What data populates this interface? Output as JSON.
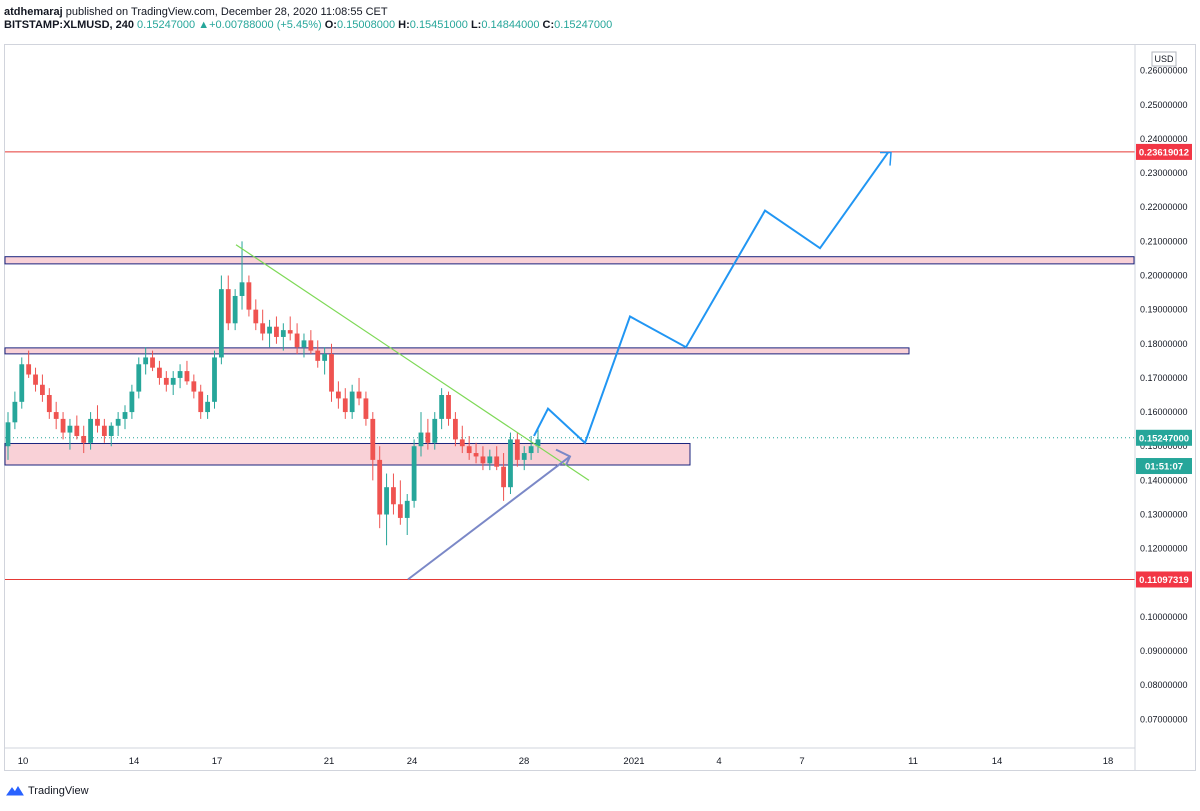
{
  "header": {
    "author": "atdhemaraj",
    "published_text": "published on TradingView.com, December 28, 2020 11:08:55 CET",
    "symbol": "BITSTAMP:XLMUSD, 240",
    "last": "0.15247000",
    "change": "+0.00788000 (+5.45%)",
    "o_label": "O:",
    "o_val": "0.15008000",
    "h_label": "H:",
    "h_val": "0.15451000",
    "l_label": "L:",
    "l_val": "0.14844000",
    "c_label": "C:",
    "c_val": "0.15247000"
  },
  "footer": {
    "brand": "TradingView"
  },
  "chart_data": {
    "type": "candlestick",
    "currency": "USD",
    "y_range": [
      0.0625,
      0.2675
    ],
    "y_ticks": [
      "0.26000000",
      "0.25000000",
      "0.24000000",
      "0.23000000",
      "0.22000000",
      "0.21000000",
      "0.20000000",
      "0.19000000",
      "0.18000000",
      "0.17000000",
      "0.16000000",
      "0.15000000",
      "0.14000000",
      "0.13000000",
      "0.12000000",
      "0.11000000",
      "0.10000000",
      "0.09000000",
      "0.08000000",
      "0.07000000"
    ],
    "x_ticks": [
      "10",
      "14",
      "17",
      "21",
      "24",
      "28",
      "2021",
      "4",
      "7",
      "11",
      "14",
      "18"
    ],
    "price_labels": [
      {
        "text": "0.23619012",
        "value": 0.23619012,
        "color": "#f23645"
      },
      {
        "text": "0.15247000",
        "value": 0.15247,
        "color": "#26a69a"
      },
      {
        "text": "01:51:07",
        "value": 0.1442,
        "color": "#26a69a"
      },
      {
        "text": "0.11097319",
        "value": 0.11097319,
        "color": "#f23645"
      }
    ],
    "horizontal_lines": [
      {
        "value": 0.23619012,
        "color": "#e53935"
      },
      {
        "value": 0.11097319,
        "color": "#e53935"
      }
    ],
    "zones": [
      {
        "from": 0.2034,
        "to": 0.2055,
        "start": "Dec 10",
        "end": "right edge"
      },
      {
        "from": 0.1775,
        "to": 0.1788,
        "start": "Dec 10",
        "end": "Jan 3"
      },
      {
        "from": 0.1445,
        "to": 0.1508,
        "start": "Dec 10",
        "end": "Dec 30"
      }
    ],
    "candles": [
      [
        0.15,
        0.16,
        0.146,
        0.157
      ],
      [
        0.157,
        0.166,
        0.155,
        0.163
      ],
      [
        0.163,
        0.176,
        0.161,
        0.174
      ],
      [
        0.174,
        0.178,
        0.17,
        0.171
      ],
      [
        0.171,
        0.173,
        0.166,
        0.168
      ],
      [
        0.168,
        0.171,
        0.163,
        0.165
      ],
      [
        0.165,
        0.167,
        0.158,
        0.16
      ],
      [
        0.16,
        0.163,
        0.155,
        0.158
      ],
      [
        0.158,
        0.16,
        0.152,
        0.154
      ],
      [
        0.154,
        0.158,
        0.149,
        0.156
      ],
      [
        0.156,
        0.159,
        0.152,
        0.153
      ],
      [
        0.153,
        0.156,
        0.148,
        0.151
      ],
      [
        0.151,
        0.16,
        0.149,
        0.158
      ],
      [
        0.158,
        0.162,
        0.154,
        0.156
      ],
      [
        0.156,
        0.158,
        0.151,
        0.153
      ],
      [
        0.153,
        0.157,
        0.15,
        0.156
      ],
      [
        0.156,
        0.16,
        0.153,
        0.158
      ],
      [
        0.158,
        0.162,
        0.155,
        0.16
      ],
      [
        0.16,
        0.168,
        0.158,
        0.166
      ],
      [
        0.166,
        0.176,
        0.164,
        0.174
      ],
      [
        0.174,
        0.179,
        0.171,
        0.176
      ],
      [
        0.176,
        0.178,
        0.172,
        0.173
      ],
      [
        0.173,
        0.175,
        0.168,
        0.17
      ],
      [
        0.17,
        0.172,
        0.166,
        0.168
      ],
      [
        0.168,
        0.172,
        0.165,
        0.17
      ],
      [
        0.17,
        0.174,
        0.167,
        0.172
      ],
      [
        0.172,
        0.175,
        0.168,
        0.169
      ],
      [
        0.169,
        0.171,
        0.164,
        0.166
      ],
      [
        0.166,
        0.168,
        0.158,
        0.16
      ],
      [
        0.16,
        0.165,
        0.158,
        0.163
      ],
      [
        0.163,
        0.178,
        0.161,
        0.176
      ],
      [
        0.176,
        0.2,
        0.174,
        0.196
      ],
      [
        0.196,
        0.2,
        0.184,
        0.186
      ],
      [
        0.186,
        0.196,
        0.184,
        0.194
      ],
      [
        0.194,
        0.21,
        0.19,
        0.198
      ],
      [
        0.198,
        0.2,
        0.188,
        0.19
      ],
      [
        0.19,
        0.193,
        0.184,
        0.186
      ],
      [
        0.186,
        0.19,
        0.181,
        0.183
      ],
      [
        0.183,
        0.187,
        0.179,
        0.185
      ],
      [
        0.185,
        0.188,
        0.18,
        0.182
      ],
      [
        0.182,
        0.186,
        0.178,
        0.184
      ],
      [
        0.184,
        0.188,
        0.181,
        0.183
      ],
      [
        0.183,
        0.186,
        0.177,
        0.179
      ],
      [
        0.179,
        0.183,
        0.176,
        0.181
      ],
      [
        0.181,
        0.184,
        0.177,
        0.178
      ],
      [
        0.178,
        0.181,
        0.173,
        0.175
      ],
      [
        0.175,
        0.179,
        0.171,
        0.177
      ],
      [
        0.177,
        0.18,
        0.163,
        0.166
      ],
      [
        0.166,
        0.169,
        0.161,
        0.164
      ],
      [
        0.164,
        0.167,
        0.158,
        0.16
      ],
      [
        0.16,
        0.168,
        0.158,
        0.166
      ],
      [
        0.166,
        0.17,
        0.162,
        0.164
      ],
      [
        0.164,
        0.166,
        0.156,
        0.158
      ],
      [
        0.158,
        0.16,
        0.14,
        0.146
      ],
      [
        0.146,
        0.15,
        0.126,
        0.13
      ],
      [
        0.13,
        0.142,
        0.121,
        0.138
      ],
      [
        0.138,
        0.142,
        0.13,
        0.133
      ],
      [
        0.133,
        0.14,
        0.127,
        0.129
      ],
      [
        0.129,
        0.136,
        0.124,
        0.134
      ],
      [
        0.134,
        0.152,
        0.132,
        0.15
      ],
      [
        0.15,
        0.16,
        0.147,
        0.154
      ],
      [
        0.154,
        0.158,
        0.149,
        0.151
      ],
      [
        0.151,
        0.16,
        0.149,
        0.158
      ],
      [
        0.158,
        0.167,
        0.155,
        0.165
      ],
      [
        0.165,
        0.166,
        0.156,
        0.158
      ],
      [
        0.158,
        0.16,
        0.15,
        0.152
      ],
      [
        0.152,
        0.156,
        0.148,
        0.15
      ],
      [
        0.15,
        0.153,
        0.146,
        0.148
      ],
      [
        0.148,
        0.151,
        0.145,
        0.147
      ],
      [
        0.147,
        0.15,
        0.143,
        0.145
      ],
      [
        0.145,
        0.149,
        0.143,
        0.147
      ],
      [
        0.147,
        0.15,
        0.143,
        0.144
      ],
      [
        0.144,
        0.148,
        0.134,
        0.138
      ],
      [
        0.138,
        0.154,
        0.136,
        0.152
      ],
      [
        0.152,
        0.154,
        0.144,
        0.146
      ],
      [
        0.146,
        0.15,
        0.143,
        0.148
      ],
      [
        0.148,
        0.153,
        0.146,
        0.15
      ],
      [
        0.15,
        0.155,
        0.148,
        0.152
      ]
    ],
    "trendlines": [
      {
        "from": [
          "Dec 17",
          0.209
        ],
        "to": [
          "Dec 30",
          0.14
        ],
        "color": "#7ed957"
      },
      {
        "from": [
          "Dec 23",
          0.111
        ],
        "to": [
          "Dec 29",
          0.147
        ],
        "color": "#7b88c7"
      }
    ],
    "projection_path": {
      "color": "#2196f3",
      "points": [
        [
          0.15,
          0.161
        ],
        [
          0.151,
          0.154
        ],
        [
          0.192,
          0.188
        ],
        [
          0.226,
          0.179
        ],
        [
          0.261,
          0.219
        ],
        [
          0.294,
          0.208
        ],
        [
          0.348,
          0.236
        ]
      ]
    }
  }
}
